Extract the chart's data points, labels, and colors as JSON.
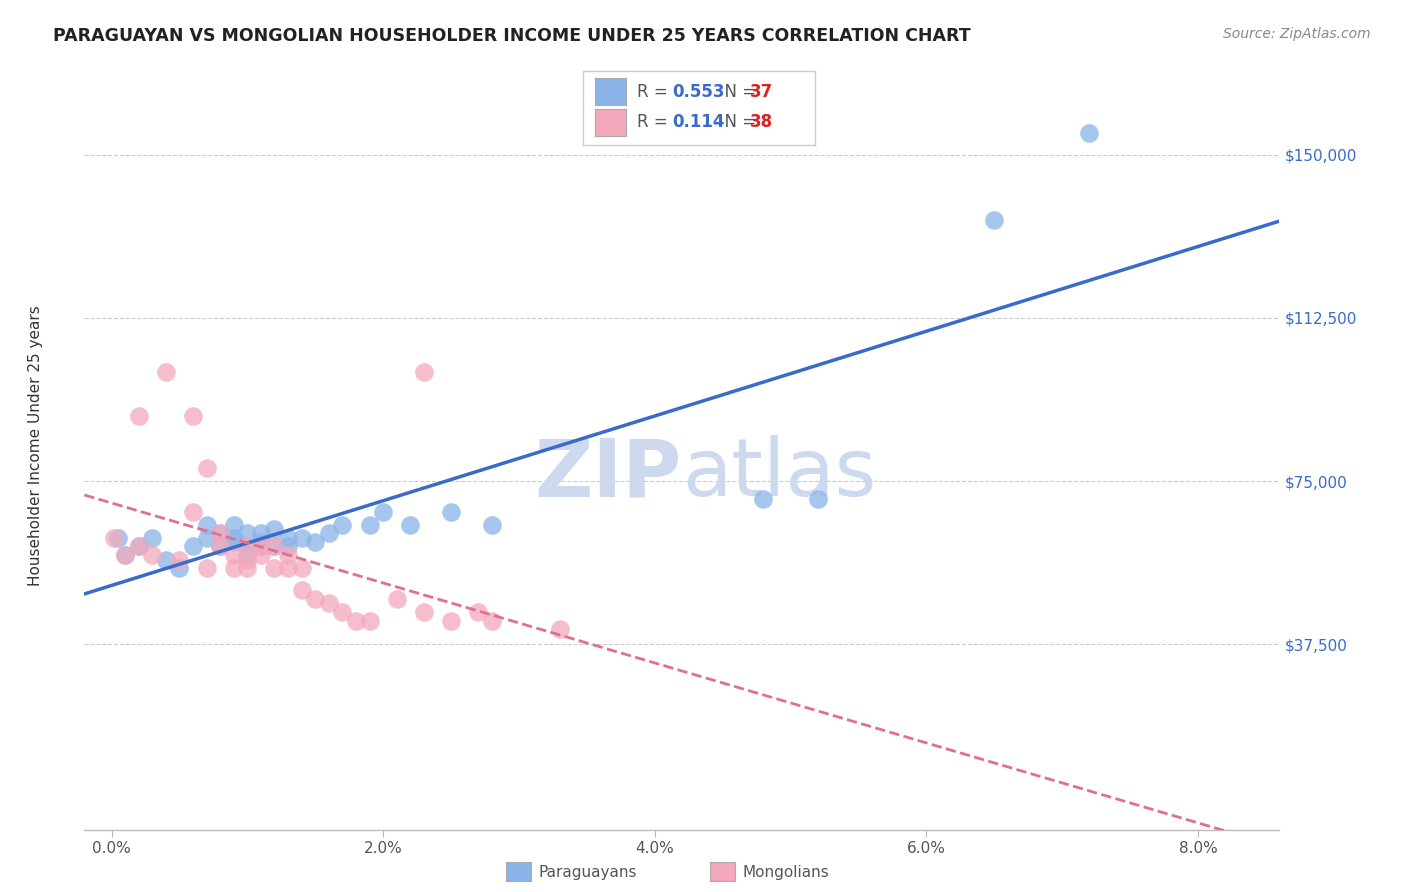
{
  "title": "PARAGUAYAN VS MONGOLIAN HOUSEHOLDER INCOME UNDER 25 YEARS CORRELATION CHART",
  "source": "Source: ZipAtlas.com",
  "ylabel": "Householder Income Under 25 years",
  "ylabel_ticks": [
    "$37,500",
    "$75,000",
    "$112,500",
    "$150,000"
  ],
  "ylabel_vals": [
    37500,
    75000,
    112500,
    150000
  ],
  "xlabel_ticks": [
    "0.0%",
    "2.0%",
    "4.0%",
    "6.0%",
    "8.0%"
  ],
  "xlabel_vals": [
    0.0,
    0.02,
    0.04,
    0.06,
    0.08
  ],
  "ylim": [
    -5000,
    165000
  ],
  "xlim": [
    -0.002,
    0.086
  ],
  "background_color": "#ffffff",
  "grid_color": "#cccccc",
  "paraguayan_color": "#8ab4e8",
  "mongolian_color": "#f4a8bc",
  "paraguayan_line_color": "#3a6bc8",
  "mongolian_line_color": "#e0708c",
  "watermark_color": "#ccd9ee",
  "legend_r_par": "0.553",
  "legend_n_par": "37",
  "legend_r_mon": "0.114",
  "legend_n_mon": "38",
  "par_x": [
    0.0005,
    0.001,
    0.002,
    0.003,
    0.004,
    0.005,
    0.006,
    0.007,
    0.007,
    0.008,
    0.008,
    0.009,
    0.009,
    0.009,
    0.01,
    0.01,
    0.01,
    0.011,
    0.011,
    0.011,
    0.012,
    0.012,
    0.013,
    0.013,
    0.014,
    0.015,
    0.016,
    0.017,
    0.019,
    0.02,
    0.022,
    0.025,
    0.028,
    0.048,
    0.052,
    0.065,
    0.072
  ],
  "par_y": [
    62000,
    58000,
    60000,
    62000,
    57000,
    55000,
    60000,
    62000,
    65000,
    63000,
    60000,
    65000,
    62000,
    61000,
    63000,
    60000,
    58000,
    63000,
    61000,
    60000,
    64000,
    60000,
    62000,
    60000,
    62000,
    61000,
    63000,
    65000,
    65000,
    68000,
    65000,
    68000,
    65000,
    71000,
    71000,
    135000,
    155000
  ],
  "mon_x": [
    0.0002,
    0.001,
    0.002,
    0.002,
    0.003,
    0.004,
    0.005,
    0.006,
    0.006,
    0.007,
    0.007,
    0.008,
    0.008,
    0.009,
    0.009,
    0.01,
    0.01,
    0.01,
    0.011,
    0.011,
    0.012,
    0.012,
    0.013,
    0.013,
    0.014,
    0.014,
    0.015,
    0.016,
    0.017,
    0.018,
    0.019,
    0.021,
    0.023,
    0.025,
    0.028,
    0.033,
    0.023,
    0.027
  ],
  "mon_y": [
    62000,
    58000,
    60000,
    90000,
    58000,
    100000,
    57000,
    90000,
    68000,
    78000,
    55000,
    60000,
    63000,
    58000,
    55000,
    57000,
    60000,
    55000,
    58000,
    60000,
    60000,
    55000,
    58000,
    55000,
    50000,
    55000,
    48000,
    47000,
    45000,
    43000,
    43000,
    48000,
    45000,
    43000,
    43000,
    41000,
    100000,
    45000
  ]
}
